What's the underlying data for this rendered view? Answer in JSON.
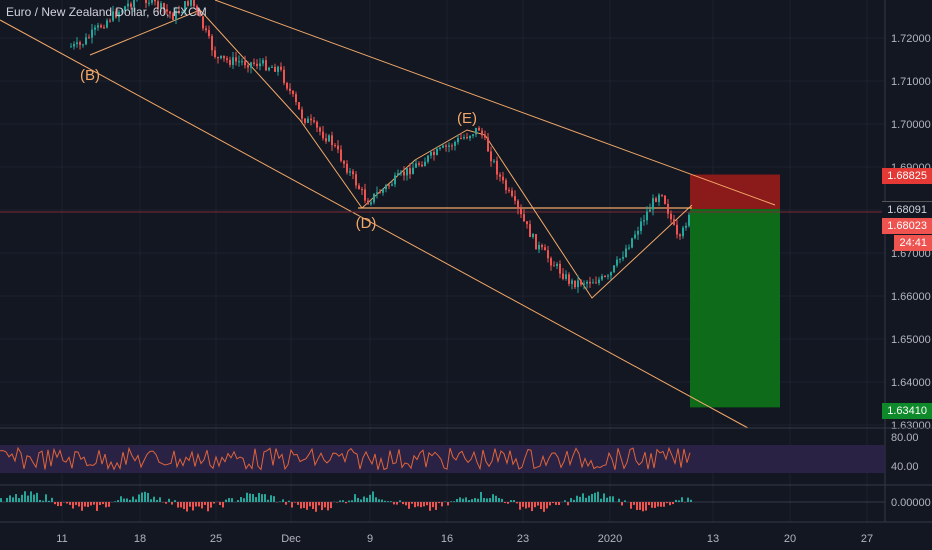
{
  "symbol": {
    "title": "Euro / New Zealand Dollar, 60, FXCM"
  },
  "colors": {
    "background": "#131722",
    "grid": "#1e222d",
    "up": "#26a69a",
    "down": "#ef5350",
    "drawing": "#f2a868",
    "stop_zone": "#8b1a1a",
    "target_zone": "#0e6b1a",
    "rsi_line": "#e0643a",
    "rsi_band": "#2c2448"
  },
  "price_axis": {
    "ticks": [
      "1.72000",
      "1.71000",
      "1.70000",
      "1.69000",
      "1.68000",
      "1.67000",
      "1.66000",
      "1.65000",
      "1.64000",
      "1.63000"
    ],
    "stop_tag": "1.68825",
    "last_tag": "1.68091",
    "entry_tag": "1.68023",
    "countdown": "24:41",
    "target_tag": "1.63410"
  },
  "time_axis": {
    "labels": [
      "11",
      "18",
      "25",
      "Dec",
      "9",
      "16",
      "23",
      "2020",
      "13",
      "20",
      "27"
    ]
  },
  "wave_labels": [
    "(B)",
    "(D)",
    "(E)"
  ],
  "rsi_axis": {
    "ticks": [
      "80.00",
      "40.00"
    ]
  },
  "osc_axis": {
    "ticks": [
      "0.00000"
    ]
  },
  "chart_data": {
    "type": "candlestick",
    "title": "Euro / New Zealand Dollar, 60, FXCM",
    "x_dates": [
      "Nov 11",
      "Nov 18",
      "Nov 25",
      "Dec 2",
      "Dec 9",
      "Dec 16",
      "Dec 23",
      "Jan 1 2020",
      "Jan 13",
      "Jan 20",
      "Jan 27"
    ],
    "ylim": [
      1.627,
      1.73
    ],
    "price_path": [
      {
        "date": "Nov 12",
        "price": 1.718
      },
      {
        "date": "Nov 14",
        "price": 1.724
      },
      {
        "date": "Nov 18",
        "price": 1.73
      },
      {
        "date": "Nov 21",
        "price": 1.725
      },
      {
        "date": "Nov 23",
        "price": 1.729
      },
      {
        "date": "Nov 25",
        "price": 1.715
      },
      {
        "date": "Nov 29",
        "price": 1.714
      },
      {
        "date": "Dec 1",
        "price": 1.713
      },
      {
        "date": "Dec 3",
        "price": 1.702
      },
      {
        "date": "Dec 6",
        "price": 1.696
      },
      {
        "date": "Dec 9",
        "price": 1.682
      },
      {
        "date": "Dec 13",
        "price": 1.69
      },
      {
        "date": "Dec 18",
        "price": 1.699
      },
      {
        "date": "Dec 21",
        "price": 1.687
      },
      {
        "date": "Dec 24",
        "price": 1.672
      },
      {
        "date": "Dec 28",
        "price": 1.663
      },
      {
        "date": "Jan 1 2020",
        "price": 1.664
      },
      {
        "date": "Jan 3",
        "price": 1.673
      },
      {
        "date": "Jan 6",
        "price": 1.685
      },
      {
        "date": "Jan 8",
        "price": 1.672
      },
      {
        "date": "Jan 9",
        "price": 1.681
      }
    ],
    "waves": [
      {
        "label": "(B)",
        "date": "Nov 13",
        "price": 1.716
      },
      {
        "label": "(D)",
        "date": "Dec 9",
        "price": 1.681
      },
      {
        "label": "(E)",
        "date": "Dec 17",
        "price": 1.699
      }
    ],
    "trade": {
      "stop": 1.68825,
      "entry": 1.68023,
      "target": 1.6341,
      "last": 1.68091
    },
    "rsi": {
      "ticks": [
        80,
        40
      ],
      "band": [
        30,
        70
      ]
    },
    "oscillator": {
      "ticks": [
        0
      ]
    }
  }
}
